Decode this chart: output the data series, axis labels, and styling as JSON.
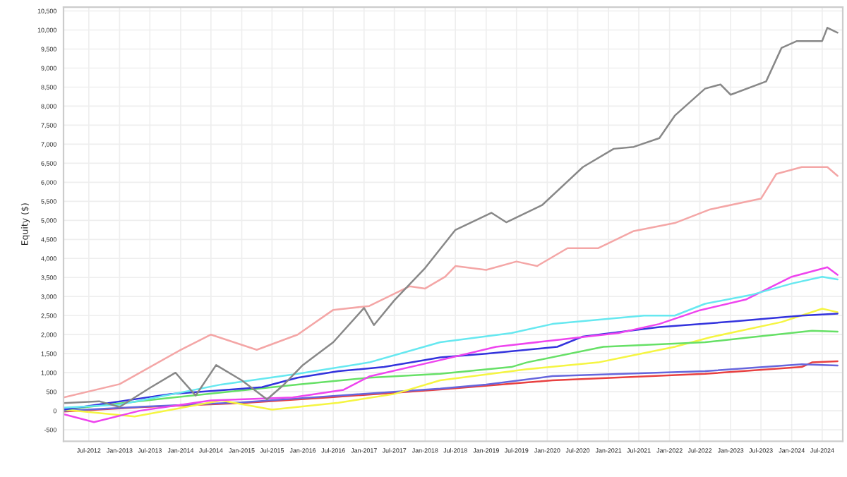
{
  "chart_data": {
    "type": "line",
    "ylabel": "Equity ($)",
    "grid": true,
    "xlim": [
      "2012-02",
      "2024-11"
    ],
    "ylim": [
      -800,
      10600
    ],
    "xticks": [
      {
        "value": "2012-07-01",
        "label": "Jul-2012"
      },
      {
        "value": "2013-01-01",
        "label": "Jan-2013"
      },
      {
        "value": "2013-07-01",
        "label": "Jul-2013"
      },
      {
        "value": "2014-01-01",
        "label": "Jan-2014"
      },
      {
        "value": "2014-07-01",
        "label": "Jul-2014"
      },
      {
        "value": "2015-01-01",
        "label": "Jan-2015"
      },
      {
        "value": "2015-07-01",
        "label": "Jul-2015"
      },
      {
        "value": "2016-01-01",
        "label": "Jan-2016"
      },
      {
        "value": "2016-07-01",
        "label": "Jul-2016"
      },
      {
        "value": "2017-01-01",
        "label": "Jan-2017"
      },
      {
        "value": "2017-07-01",
        "label": "Jul-2017"
      },
      {
        "value": "2018-01-01",
        "label": "Jan-2018"
      },
      {
        "value": "2018-07-01",
        "label": "Jul-2018"
      },
      {
        "value": "2019-01-01",
        "label": "Jan-2019"
      },
      {
        "value": "2019-07-01",
        "label": "Jul-2019"
      },
      {
        "value": "2020-01-01",
        "label": "Jan-2020"
      },
      {
        "value": "2020-07-01",
        "label": "Jul-2020"
      },
      {
        "value": "2021-01-01",
        "label": "Jan-2021"
      },
      {
        "value": "2021-07-01",
        "label": "Jul-2021"
      },
      {
        "value": "2022-01-01",
        "label": "Jan-2022"
      },
      {
        "value": "2022-07-01",
        "label": "Jul-2022"
      },
      {
        "value": "2023-01-01",
        "label": "Jan-2023"
      },
      {
        "value": "2023-07-01",
        "label": "Jul-2023"
      },
      {
        "value": "2024-01-01",
        "label": "Jan-2024"
      },
      {
        "value": "2024-07-01",
        "label": "Jul-2024"
      }
    ],
    "yticks": [
      -500,
      0,
      500,
      {
        "value": 1000,
        "label": "1,000"
      },
      {
        "value": 1500,
        "label": "1,500"
      },
      {
        "value": 2000,
        "label": "2,000"
      },
      {
        "value": 2500,
        "label": "2,500"
      },
      {
        "value": 3000,
        "label": "3,000"
      },
      {
        "value": 3500,
        "label": "3,500"
      },
      {
        "value": 4000,
        "label": "4,000"
      },
      {
        "value": 4500,
        "label": "4,500"
      },
      {
        "value": 5000,
        "label": "5,000"
      },
      {
        "value": 5500,
        "label": "5,500"
      },
      {
        "value": 6000,
        "label": "6,000"
      },
      {
        "value": 6500,
        "label": "6,500"
      },
      {
        "value": 7000,
        "label": "7,000"
      },
      {
        "value": 7500,
        "label": "7,500"
      },
      {
        "value": 8000,
        "label": "8,000"
      },
      {
        "value": 8500,
        "label": "8,500"
      },
      {
        "value": 9000,
        "label": "9,000"
      },
      {
        "value": 9500,
        "label": "9,500"
      },
      {
        "value": 10000,
        "label": "10,000"
      },
      {
        "value": 10500,
        "label": "10,500"
      }
    ],
    "series": [
      {
        "color": "#e84040",
        "x": [
          "2012-02",
          "2013-06",
          "2015-01",
          "2016-06",
          "2018-04",
          "2020-02",
          "2022-08",
          "2024-03",
          "2024-05",
          "2024-10"
        ],
        "values": [
          -20,
          100,
          200,
          350,
          560,
          800,
          970,
          1150,
          1270,
          1300
        ]
      },
      {
        "color": "#6666dd",
        "x": [
          "2012-02",
          "2013-06",
          "2015-01",
          "2016-06",
          "2018-04",
          "2019-01",
          "2020-02",
          "2022-08",
          "2024-03",
          "2024-10"
        ],
        "values": [
          0,
          110,
          220,
          380,
          580,
          690,
          910,
          1040,
          1220,
          1190
        ]
      },
      {
        "color": "#f5f542",
        "x": [
          "2012-02",
          "2013-04",
          "2014-09",
          "2015-07",
          "2016-08",
          "2017-07",
          "2018-04",
          "2019-09",
          "2020-11",
          "2022-02",
          "2022-09",
          "2023-11",
          "2024-07",
          "2024-10"
        ],
        "values": [
          30,
          -150,
          270,
          30,
          210,
          440,
          800,
          1090,
          1270,
          1680,
          1930,
          2330,
          2680,
          2590
        ]
      },
      {
        "color": "#66e066",
        "x": [
          "2012-02",
          "2013-11",
          "2015-12",
          "2017-02",
          "2018-04",
          "2019-06",
          "2019-09",
          "2020-12",
          "2022-08",
          "2023-05",
          "2024-05",
          "2024-10"
        ],
        "values": [
          30,
          340,
          690,
          870,
          970,
          1150,
          1270,
          1680,
          1800,
          1930,
          2100,
          2080
        ]
      },
      {
        "color": "#3333dd",
        "x": [
          "2012-02",
          "2013-11",
          "2015-05",
          "2015-12",
          "2016-08",
          "2017-05",
          "2018-04",
          "2019-01",
          "2020-03",
          "2020-08",
          "2021-11",
          "2023-02",
          "2024-03",
          "2024-10"
        ],
        "values": [
          30,
          440,
          620,
          870,
          1040,
          1150,
          1400,
          1500,
          1680,
          1950,
          2200,
          2350,
          2500,
          2550
        ]
      },
      {
        "color": "#ee44ee",
        "x": [
          "2012-02",
          "2012-08",
          "2013-05",
          "2014-07",
          "2015-11",
          "2016-09",
          "2017-02",
          "2018-04",
          "2019-03",
          "2020-03",
          "2021-03",
          "2021-11",
          "2022-07",
          "2023-04",
          "2024-01",
          "2024-08",
          "2024-10"
        ],
        "values": [
          -90,
          -300,
          0,
          270,
          350,
          550,
          900,
          1330,
          1680,
          1860,
          2040,
          2280,
          2640,
          2920,
          3520,
          3770,
          3570
        ]
      },
      {
        "color": "#66e8f0",
        "x": [
          "2012-02",
          "2013-01",
          "2014-09",
          "2015-12",
          "2017-02",
          "2018-04",
          "2019-06",
          "2020-02",
          "2021-08",
          "2022-02",
          "2022-08",
          "2023-05",
          "2024-01",
          "2024-07",
          "2024-10"
        ],
        "values": [
          80,
          160,
          690,
          970,
          1270,
          1800,
          2040,
          2280,
          2500,
          2500,
          2810,
          3040,
          3340,
          3520,
          3450
        ]
      },
      {
        "color": "#f4a6a6",
        "x": [
          "2012-02",
          "2013-01",
          "2014-01",
          "2014-07",
          "2015-04",
          "2015-12",
          "2016-07",
          "2017-02",
          "2017-10",
          "2018-01",
          "2018-05",
          "2018-07",
          "2019-01",
          "2019-07",
          "2019-11",
          "2020-05",
          "2020-11",
          "2021-06",
          "2022-02",
          "2022-09",
          "2023-07",
          "2023-10",
          "2024-03",
          "2024-08",
          "2024-10"
        ],
        "values": [
          350,
          700,
          1600,
          2000,
          1600,
          2000,
          2650,
          2750,
          3270,
          3210,
          3520,
          3800,
          3700,
          3920,
          3800,
          4270,
          4270,
          4720,
          4930,
          5290,
          5570,
          6220,
          6400,
          6400,
          6170
        ]
      },
      {
        "color": "#888888",
        "x": [
          "2012-02",
          "2012-09",
          "2013-01",
          "2013-07",
          "2013-12",
          "2014-04",
          "2014-08",
          "2015-01",
          "2015-06",
          "2015-09",
          "2016-01",
          "2016-07",
          "2017-01",
          "2017-03",
          "2017-07",
          "2018-01",
          "2018-07",
          "2019-02",
          "2019-05",
          "2019-12",
          "2020-08",
          "2021-02",
          "2021-06",
          "2021-11",
          "2022-02",
          "2022-08",
          "2022-11",
          "2023-01",
          "2023-08",
          "2023-11",
          "2024-02",
          "2024-07",
          "2024-08",
          "2024-10"
        ],
        "values": [
          200,
          250,
          100,
          600,
          1000,
          400,
          1200,
          800,
          300,
          650,
          1200,
          1800,
          2700,
          2250,
          2900,
          3750,
          4750,
          5200,
          4950,
          5400,
          6400,
          6880,
          6930,
          7160,
          7750,
          8460,
          8570,
          8300,
          8650,
          9530,
          9710,
          9710,
          10060,
          9930
        ]
      }
    ]
  }
}
